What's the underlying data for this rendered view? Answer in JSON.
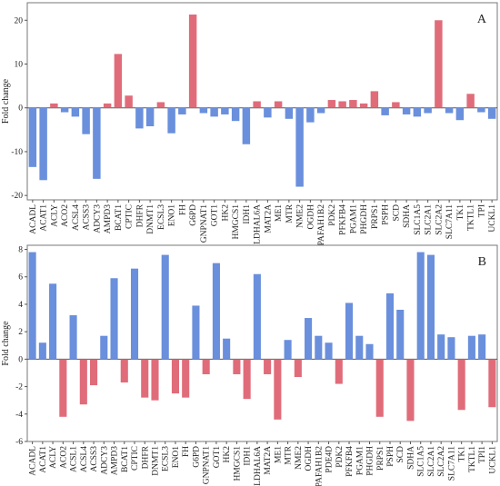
{
  "chart_data": [
    {
      "type": "bar",
      "label": "A",
      "ylabel": "Fold change",
      "categories": [
        "ACADL",
        "ACAT1",
        "ACLY",
        "ACO2",
        "ACSL4",
        "ACSS3",
        "ADCY3",
        "AMPD3",
        "BCAT1",
        "CPTIC",
        "DHFR",
        "DNMT1",
        "ECSL3",
        "ENO1",
        "FH",
        "G6PD",
        "GNPNAT1",
        "GOT1",
        "HK2",
        "HMGCS1",
        "IDH1",
        "LDHAL6A",
        "MAT2A",
        "ME1",
        "MTR",
        "NME2",
        "OGDH",
        "PAFAH1B2",
        "PDK2",
        "PFKFB4",
        "PGAM1",
        "PHGDH",
        "PRPS1",
        "PSPH",
        "SCD",
        "SDHA",
        "SLC1A5",
        "SLC2A1",
        "SLC2A2",
        "SLC7A11",
        "TK1",
        "TKTL1",
        "TPI",
        "UCKL1"
      ],
      "values": [
        -13.5,
        -16.5,
        1,
        -1,
        -2,
        -6,
        -16.2,
        1,
        12.3,
        2.8,
        -4.7,
        -4.2,
        1.3,
        -5.8,
        -1.5,
        21.3,
        -1.2,
        -2,
        -1.5,
        -3,
        -8.3,
        1.5,
        -2.2,
        1.5,
        -2.5,
        -18,
        -3.3,
        -1.2,
        1.8,
        1.5,
        1.8,
        1,
        3.8,
        -1.7,
        1.3,
        -1.5,
        -2,
        -1.2,
        20,
        -1.2,
        -2.8,
        3.2,
        -1,
        -2.5
      ],
      "color_positive": "#e06c7a",
      "color_negative": "#6a8fdc",
      "ylim": [
        -21,
        24
      ],
      "yticks": [
        -20,
        -10,
        0,
        10,
        20
      ]
    },
    {
      "type": "bar",
      "label": "B",
      "ylabel": "Fold change",
      "categories": [
        "ACADL",
        "ACAT1",
        "ACLY",
        "ACO2",
        "ACSL1",
        "ACSL4",
        "ACSS3",
        "ADCY3",
        "AMPD3",
        "BCAT1",
        "CPTIC",
        "DHFR",
        "DNMT1",
        "ECSL3",
        "ENO1",
        "FH",
        "G6PD",
        "GNPNAT1",
        "GOT1",
        "HK2",
        "HMGCS1",
        "IDH1",
        "LDHAL6A",
        "MAT2A",
        "ME1",
        "MTR",
        "NME2",
        "OGDH",
        "PAFAH1B2",
        "PDE4D",
        "PDK2",
        "PFKFB4",
        "PGAM1",
        "PHGDH",
        "PRPS1",
        "PSPH",
        "SCD",
        "SDHA",
        "SLC1A5",
        "SLC2A1",
        "SLC2A2",
        "SLC7A11",
        "TK1",
        "TKTL1",
        "TPI1",
        "UCKL1"
      ],
      "values": [
        7.8,
        1.2,
        5.5,
        -4.2,
        3.2,
        -3.3,
        -1.9,
        1.7,
        5.9,
        -1.7,
        6.6,
        -2.8,
        -3,
        7.6,
        -2.5,
        -2.8,
        3.9,
        -1.1,
        7,
        1.5,
        -1.1,
        -2.9,
        6.2,
        -1.1,
        -4.4,
        1.4,
        -1.3,
        3,
        1.7,
        1.2,
        -1.8,
        4.1,
        1.7,
        1.1,
        -4.2,
        4.8,
        3.6,
        -4.5,
        7.8,
        7.6,
        1.8,
        1.6,
        -3.7,
        1.7,
        1.8,
        -3.5
      ],
      "color_positive": "#6a8fdc",
      "color_negative": "#e06c7a",
      "ylim": [
        -6,
        8.3
      ],
      "yticks": [
        -6,
        -4,
        -2,
        0,
        2,
        4,
        6,
        8
      ]
    }
  ]
}
